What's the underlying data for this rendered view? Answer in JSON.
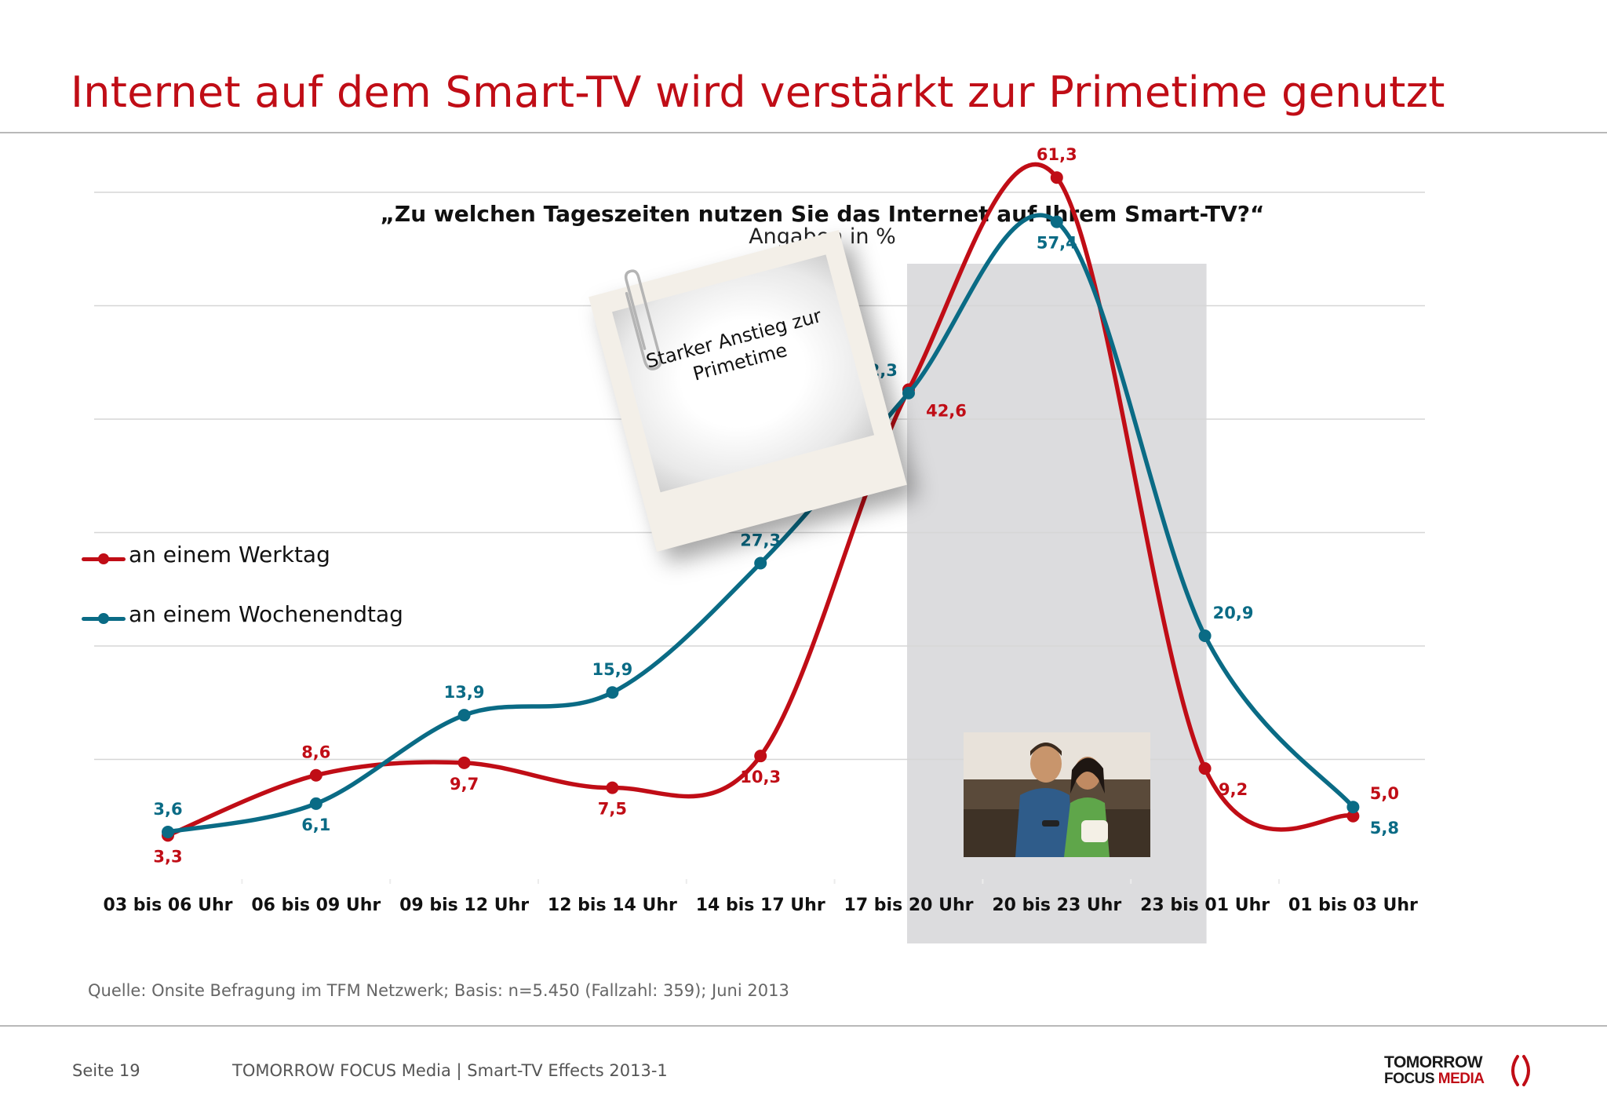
{
  "header": {
    "title": "Internet auf dem Smart-TV wird verstärkt zur Primetime genutzt"
  },
  "chart_data": {
    "type": "line",
    "title": "„Zu welchen Tageszeiten nutzen Sie das Internet auf Ihrem Smart-TV?“",
    "subtitle": "Angaben in %",
    "categories": [
      "03 bis 06 Uhr",
      "06 bis 09 Uhr",
      "09 bis 12 Uhr",
      "12 bis 14 Uhr",
      "14 bis 17 Uhr",
      "17 bis 20 Uhr",
      "20 bis 23 Uhr",
      "23 bis 01 Uhr",
      "01 bis 03 Uhr"
    ],
    "series": [
      {
        "name": "an einem Werktag",
        "color": "#c00d16",
        "values": [
          3.3,
          8.6,
          9.7,
          7.5,
          10.3,
          42.6,
          61.3,
          9.2,
          5.0
        ],
        "labels": [
          "3,3",
          "8,6",
          "9,7",
          "7,5",
          "10,3",
          "42,6",
          "61,3",
          "9,2",
          "5,0"
        ]
      },
      {
        "name": "an einem Wochenendtag",
        "color": "#0a6b85",
        "values": [
          3.6,
          6.1,
          13.9,
          15.9,
          27.3,
          42.3,
          57.4,
          20.9,
          5.8
        ],
        "labels": [
          "3,6",
          "6,1",
          "13,9",
          "15,9",
          "27,3",
          "42,3",
          "57,4",
          "20,9",
          "5,8"
        ]
      }
    ],
    "ylim": [
      0,
      70
    ],
    "grid": true,
    "highlight_categories": [
      "17 bis 20 Uhr",
      "20 bis 23 Uhr",
      "23 bis 01 Uhr"
    ],
    "legend_position": "left",
    "annotation": "Starker Anstieg zur Primetime"
  },
  "source": "Quelle: Onsite Befragung im TFM Netzwerk; Basis: n=5.450 (Fallzahl: 359); Juni 2013",
  "footer": {
    "page": "Seite 19",
    "company": "TOMORROW FOCUS Media  |  Smart-TV Effects 2013-1",
    "logo_line1": "TOMORROW",
    "logo_line2a": "FOCUS",
    "logo_line2b": "MEDIA"
  },
  "colors": {
    "accent": "#c00d16",
    "teal": "#0a6b85",
    "highlight": "#dcdcde",
    "grid": "#d6d6d6"
  },
  "icons": {
    "photo": "couple-watching-tv-photo",
    "clip": "paperclip-icon",
    "logo_mark": "logo-arc-icon"
  }
}
